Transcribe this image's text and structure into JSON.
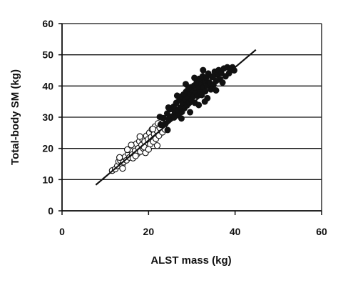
{
  "chart_data": {
    "type": "scatter",
    "xlabel": "ALST mass (kg)",
    "ylabel": "Total-body SM (kg)",
    "xlim": [
      0,
      60
    ],
    "ylim": [
      0,
      60
    ],
    "xticks": [
      "0",
      "20",
      "40",
      "60"
    ],
    "yticks": [
      "0",
      "10",
      "20",
      "30",
      "40",
      "50",
      "60"
    ],
    "grid": "horizontal",
    "colors": {
      "ink": "#111111",
      "open_fill": "#ffffff",
      "filled": "#111111"
    },
    "regression_line": {
      "x": [
        7.8,
        44.8
      ],
      "y": [
        8.3,
        51.6
      ]
    },
    "series": [
      {
        "marker": "open-circle",
        "points": [
          [
            11.6,
            12.9
          ],
          [
            12.3,
            13.4
          ],
          [
            12.8,
            14.4
          ],
          [
            13.1,
            15.8
          ],
          [
            13.5,
            16.1
          ],
          [
            13.9,
            14.8
          ],
          [
            14.2,
            15.6
          ],
          [
            14.6,
            17.3
          ],
          [
            14.9,
            16.2
          ],
          [
            15.3,
            18.3
          ],
          [
            15.6,
            17.1
          ],
          [
            15.9,
            19.4
          ],
          [
            16.2,
            18.0
          ],
          [
            16.4,
            16.9
          ],
          [
            16.6,
            20.6
          ],
          [
            16.9,
            19.2
          ],
          [
            17.2,
            21.5
          ],
          [
            17.4,
            18.3
          ],
          [
            17.7,
            20.1
          ],
          [
            17.9,
            22.3
          ],
          [
            18.1,
            19.0
          ],
          [
            18.4,
            21.1
          ],
          [
            18.6,
            23.0
          ],
          [
            18.8,
            20.0
          ],
          [
            19.1,
            22.2
          ],
          [
            19.3,
            18.6
          ],
          [
            19.5,
            24.0
          ],
          [
            19.7,
            21.0
          ],
          [
            19.9,
            22.9
          ],
          [
            20.2,
            25.0
          ],
          [
            20.4,
            21.4
          ],
          [
            20.6,
            23.6
          ],
          [
            20.8,
            26.1
          ],
          [
            21.1,
            22.2
          ],
          [
            21.3,
            24.6
          ],
          [
            21.5,
            27.0
          ],
          [
            21.7,
            23.1
          ],
          [
            21.9,
            25.7
          ],
          [
            22.2,
            28.0
          ],
          [
            22.4,
            24.1
          ],
          [
            22.6,
            26.6
          ],
          [
            22.9,
            27.6
          ],
          [
            23.2,
            25.2
          ],
          [
            23.5,
            28.6
          ],
          [
            23.8,
            26.1
          ],
          [
            24.1,
            29.0
          ],
          [
            16.0,
            21.1
          ],
          [
            17.0,
            17.6
          ],
          [
            18.0,
            23.8
          ],
          [
            19.0,
            20.4
          ],
          [
            15.1,
            19.6
          ],
          [
            20.0,
            19.7
          ],
          [
            21.0,
            26.2
          ],
          [
            13.3,
            17.1
          ],
          [
            14.0,
            13.6
          ],
          [
            22.0,
            20.9
          ]
        ]
      },
      {
        "marker": "filled-circle",
        "points": [
          [
            22.8,
            27.6
          ],
          [
            23.4,
            29.7
          ],
          [
            23.9,
            27.9
          ],
          [
            24.3,
            31.2
          ],
          [
            24.7,
            29.4
          ],
          [
            25.1,
            32.6
          ],
          [
            25.5,
            30.3
          ],
          [
            25.8,
            33.4
          ],
          [
            26.1,
            31.5
          ],
          [
            26.4,
            34.6
          ],
          [
            26.7,
            32.3
          ],
          [
            26.9,
            30.6
          ],
          [
            27.1,
            35.4
          ],
          [
            27.3,
            33.1
          ],
          [
            27.5,
            36.6
          ],
          [
            27.7,
            31.7
          ],
          [
            27.9,
            34.4
          ],
          [
            28.1,
            37.3
          ],
          [
            28.3,
            32.9
          ],
          [
            28.5,
            35.6
          ],
          [
            28.7,
            38.2
          ],
          [
            28.9,
            33.8
          ],
          [
            29.1,
            36.3
          ],
          [
            29.3,
            34.7
          ],
          [
            29.5,
            37.6
          ],
          [
            29.7,
            39.6
          ],
          [
            29.9,
            35.5
          ],
          [
            30.1,
            38.7
          ],
          [
            30.3,
            36.6
          ],
          [
            30.5,
            40.1
          ],
          [
            30.7,
            34.6
          ],
          [
            30.9,
            37.9
          ],
          [
            31.1,
            41.0
          ],
          [
            31.3,
            36.9
          ],
          [
            31.5,
            39.3
          ],
          [
            31.7,
            42.3
          ],
          [
            31.9,
            38.1
          ],
          [
            32.1,
            40.6
          ],
          [
            32.3,
            37.1
          ],
          [
            32.5,
            43.1
          ],
          [
            32.7,
            39.6
          ],
          [
            32.9,
            41.6
          ],
          [
            33.1,
            38.3
          ],
          [
            33.3,
            42.6
          ],
          [
            33.5,
            40.1
          ],
          [
            33.8,
            44.0
          ],
          [
            34.1,
            41.1
          ],
          [
            34.4,
            38.9
          ],
          [
            34.7,
            42.9
          ],
          [
            35.0,
            40.3
          ],
          [
            35.3,
            44.6
          ],
          [
            35.6,
            41.6
          ],
          [
            35.9,
            43.6
          ],
          [
            36.2,
            45.1
          ],
          [
            36.5,
            42.1
          ],
          [
            36.8,
            44.1
          ],
          [
            37.1,
            41.1
          ],
          [
            37.4,
            45.6
          ],
          [
            37.8,
            43.1
          ],
          [
            38.2,
            46.0
          ],
          [
            38.6,
            44.1
          ],
          [
            39.0,
            45.6
          ],
          [
            39.4,
            46.0
          ],
          [
            39.8,
            45.0
          ],
          [
            25.9,
            29.9
          ],
          [
            27.6,
            29.6
          ],
          [
            29.6,
            31.6
          ],
          [
            31.6,
            33.9
          ],
          [
            33.6,
            36.1
          ],
          [
            35.6,
            38.6
          ],
          [
            24.4,
            25.9
          ],
          [
            26.6,
            36.9
          ],
          [
            28.6,
            40.6
          ],
          [
            30.6,
            42.6
          ],
          [
            32.6,
            45.1
          ],
          [
            22.6,
            30.1
          ],
          [
            24.6,
            33.1
          ],
          [
            29.2,
            39.2
          ],
          [
            33.0,
            35.0
          ],
          [
            34.9,
            43.1
          ]
        ]
      }
    ]
  }
}
